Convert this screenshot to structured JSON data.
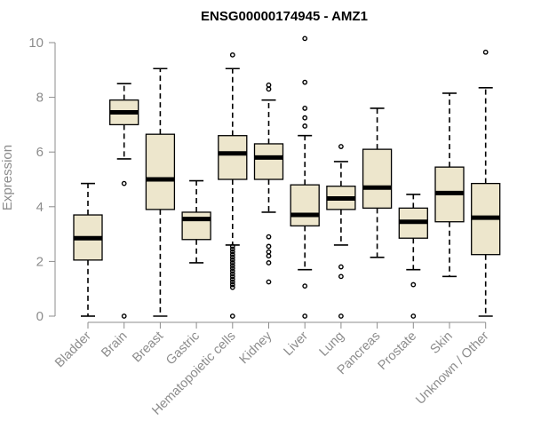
{
  "chart_data": {
    "type": "boxplot",
    "title": "ENSG00000174945 - AMZ1",
    "xlabel": "",
    "ylabel": "Expression",
    "ylim": [
      0,
      10
    ],
    "yticks": [
      0,
      2,
      4,
      6,
      8,
      10
    ],
    "colors": {
      "box_fill": "#ede6cc",
      "box_stroke": "#000000",
      "median": "#000000",
      "axis": "#8c8c8c"
    },
    "categories": [
      "Bladder",
      "Brain",
      "Breast",
      "Gastric",
      "Hematopoietic cells",
      "Kidney",
      "Liver",
      "Lung",
      "Pancreas",
      "Prostate",
      "Skin",
      "Unknown / Other"
    ],
    "boxes": [
      {
        "category": "Bladder",
        "whisker_low": 0.0,
        "q1": 2.05,
        "median": 2.85,
        "q3": 3.7,
        "whisker_high": 4.85,
        "outliers": []
      },
      {
        "category": "Brain",
        "whisker_low": 5.75,
        "q1": 7.0,
        "median": 7.45,
        "q3": 7.9,
        "whisker_high": 8.5,
        "outliers": [
          4.85,
          0.0
        ]
      },
      {
        "category": "Breast",
        "whisker_low": 0.0,
        "q1": 3.9,
        "median": 5.0,
        "q3": 6.65,
        "whisker_high": 9.05,
        "outliers": []
      },
      {
        "category": "Gastric",
        "whisker_low": 1.95,
        "q1": 2.8,
        "median": 3.55,
        "q3": 3.8,
        "whisker_high": 4.95,
        "outliers": []
      },
      {
        "category": "Hematopoietic cells",
        "whisker_low": 2.6,
        "q1": 5.0,
        "median": 5.95,
        "q3": 6.6,
        "whisker_high": 9.05,
        "outliers": [
          9.55,
          2.55,
          2.45,
          2.35,
          2.25,
          2.15,
          2.05,
          1.95,
          1.85,
          1.75,
          1.65,
          1.55,
          1.45,
          1.35,
          1.25,
          1.15,
          1.05,
          0.0
        ]
      },
      {
        "category": "Kidney",
        "whisker_low": 3.8,
        "q1": 5.0,
        "median": 5.8,
        "q3": 6.3,
        "whisker_high": 7.9,
        "outliers": [
          8.45,
          8.3,
          2.9,
          2.55,
          2.35,
          2.2,
          1.95,
          1.25
        ]
      },
      {
        "category": "Liver",
        "whisker_low": 1.7,
        "q1": 3.3,
        "median": 3.7,
        "q3": 4.8,
        "whisker_high": 6.6,
        "outliers": [
          10.15,
          8.55,
          7.6,
          7.25,
          6.95,
          1.1,
          0.0
        ]
      },
      {
        "category": "Lung",
        "whisker_low": 2.6,
        "q1": 3.9,
        "median": 4.3,
        "q3": 4.75,
        "whisker_high": 5.65,
        "outliers": [
          6.2,
          1.8,
          1.45,
          0.0
        ]
      },
      {
        "category": "Pancreas",
        "whisker_low": 2.15,
        "q1": 3.95,
        "median": 4.7,
        "q3": 6.1,
        "whisker_high": 7.6,
        "outliers": []
      },
      {
        "category": "Prostate",
        "whisker_low": 1.7,
        "q1": 2.85,
        "median": 3.45,
        "q3": 3.95,
        "whisker_high": 4.45,
        "outliers": [
          1.15,
          0.0
        ]
      },
      {
        "category": "Skin",
        "whisker_low": 1.45,
        "q1": 3.45,
        "median": 4.5,
        "q3": 5.45,
        "whisker_high": 8.15,
        "outliers": []
      },
      {
        "category": "Unknown / Other",
        "whisker_low": 0.0,
        "q1": 2.25,
        "median": 3.6,
        "q3": 4.85,
        "whisker_high": 8.35,
        "outliers": [
          9.65
        ]
      }
    ]
  }
}
